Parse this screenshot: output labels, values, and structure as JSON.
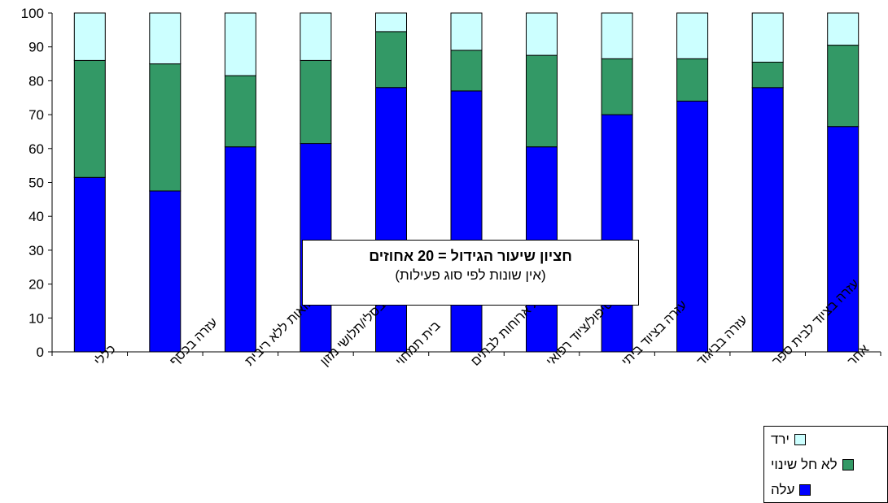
{
  "chart_data": {
    "type": "bar",
    "stacked": true,
    "categories": [
      "כללי",
      "עזרה בכסף",
      "מתן הלוואות ללא ריבית",
      "עזרה בסלי/תלושי מזון",
      "בית תמחוי",
      "חלוקת ארוחות לבתים",
      "עזרה בטיפול/ציוד רפואי",
      "עזרה בציוד ביתי",
      "עזרה בביגוד",
      "עזרה בציוד לבית ספר",
      "אחר"
    ],
    "series": [
      {
        "name": "עלה",
        "color": "#0000ff",
        "values": [
          51.5,
          47.5,
          60.5,
          61.5,
          78,
          77,
          60.5,
          70,
          74,
          78,
          66.5
        ]
      },
      {
        "name": "לא חל שינוי",
        "color": "#339966",
        "values": [
          34.5,
          37.5,
          21,
          24.5,
          16.5,
          12,
          27,
          16.5,
          12.5,
          7.5,
          24
        ]
      },
      {
        "name": "ירד",
        "color": "#ccffff",
        "values": [
          14,
          15,
          18.5,
          14,
          5.5,
          11,
          12.5,
          13.5,
          13.5,
          14.5,
          9.5
        ]
      }
    ],
    "ylim": [
      0,
      100
    ],
    "yticks": [
      0,
      10,
      20,
      30,
      40,
      50,
      60,
      70,
      80,
      90,
      100
    ],
    "ytick_labels": [
      "0",
      "10",
      "20",
      "30",
      "40",
      "50",
      "60",
      "70",
      "80",
      "90",
      "100"
    ],
    "grid": false,
    "legend_position": "bottom-right"
  },
  "annotation": {
    "line1": "חציון שיעור הגידול = 20 אחוזים",
    "line2": "(אין שונות לפי סוג פעילות)"
  },
  "legend": {
    "items": [
      {
        "label": "ירד",
        "color": "#ccffff"
      },
      {
        "label": "לא חל שינוי",
        "color": "#339966"
      },
      {
        "label": "עלה",
        "color": "#0000ff"
      }
    ]
  }
}
